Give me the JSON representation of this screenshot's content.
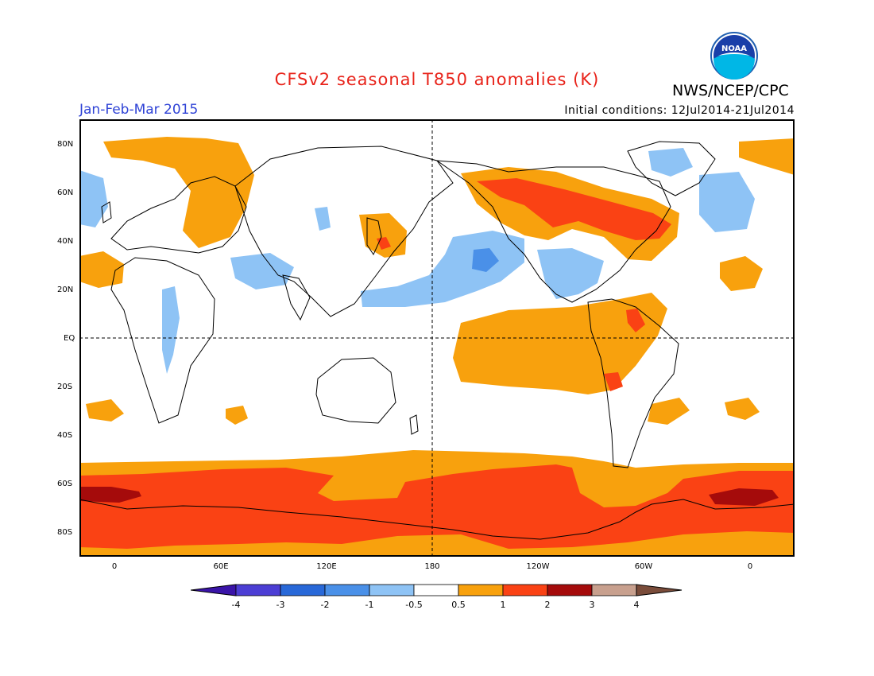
{
  "title": "CFSv2 seasonal T850 anomalies (K)",
  "organization": "NWS/NCEP/CPC",
  "logo_text": "NOAA",
  "period": "Jan-Feb-Mar 2015",
  "initial_conditions": "Initial conditions: 12Jul2014-21Jul2014",
  "lat_labels": [
    "80N",
    "60N",
    "40N",
    "20N",
    "EQ",
    "20S",
    "40S",
    "60S",
    "80S"
  ],
  "lon_labels": [
    "0",
    "60E",
    "120E",
    "180",
    "120W",
    "60W",
    "0"
  ],
  "colorbar": {
    "labels": [
      "-4",
      "-3",
      "-2",
      "-1",
      "-0.5",
      "0.5",
      "1",
      "2",
      "3",
      "4"
    ],
    "colors": [
      "#3a14a8",
      "#4c3ed4",
      "#2868d8",
      "#4a90e8",
      "#8ec3f5",
      "#ffffff",
      "#f8a10d",
      "#fa4214",
      "#a50b0b",
      "#c8a08e",
      "#7a4c3a"
    ]
  }
}
